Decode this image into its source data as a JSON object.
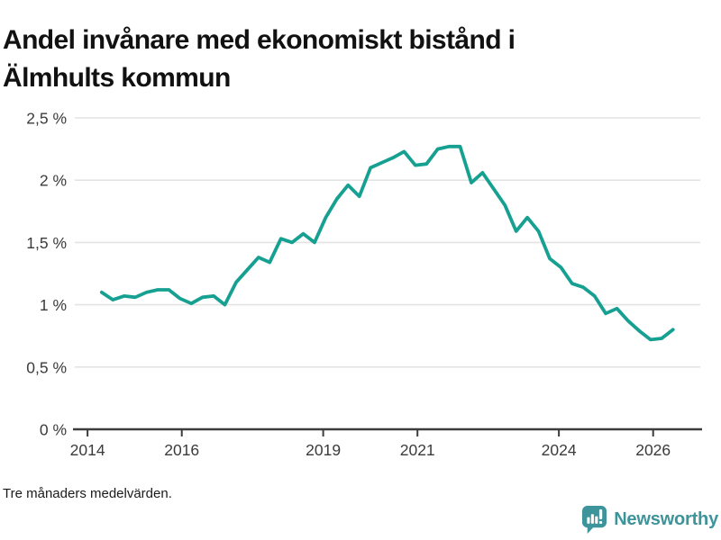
{
  "page": {
    "title": "Andel invånare med ekonomiskt bistånd i Älmhults kommun",
    "footnote": "Tre månaders medelvärden.",
    "background": "#ffffff",
    "brand": {
      "name": "Newsworthy",
      "color": "#3d949b"
    }
  },
  "chart_data": {
    "type": "line",
    "title": "Andel invånare med ekonomiskt bistånd i Älmhults kommun",
    "note": "Tre månaders medelvärden.",
    "unit": "%",
    "grid": true,
    "legend_position": "none",
    "line_color": "#16a091",
    "grid_color": "#e3e3e3",
    "axis_color": "#3c3c3c",
    "label_color": "#3b3b3b",
    "x_axis": {
      "range": [
        2013.73,
        2027.0
      ],
      "ticks": [
        {
          "year": 2014,
          "label": "2014"
        },
        {
          "year": 2016,
          "label": "2016"
        },
        {
          "year": 2019,
          "label": "2019"
        },
        {
          "year": 2021,
          "label": "2021"
        },
        {
          "year": 2024,
          "label": "2024"
        },
        {
          "year": 2026,
          "label": "2026"
        }
      ]
    },
    "y_axis": {
      "range": [
        0,
        2.5
      ],
      "ticks": [
        {
          "value": 0,
          "label": "0 %"
        },
        {
          "value": 0.5,
          "label": "0,5 %"
        },
        {
          "value": 1,
          "label": "1 %"
        },
        {
          "value": 1.5,
          "label": "1,5 %"
        },
        {
          "value": 2,
          "label": "2 %"
        },
        {
          "value": 2.5,
          "label": "2,5 %"
        }
      ]
    },
    "series": [
      {
        "name": "Andel invånare med ekonomiskt bistånd",
        "x_start": 2014.3,
        "x_end": 2026.42,
        "values": [
          1.1,
          1.04,
          1.07,
          1.06,
          1.1,
          1.12,
          1.12,
          1.05,
          1.01,
          1.06,
          1.07,
          1.0,
          1.18,
          1.28,
          1.38,
          1.34,
          1.53,
          1.5,
          1.57,
          1.5,
          1.7,
          1.85,
          1.96,
          1.87,
          2.1,
          2.14,
          2.18,
          2.23,
          2.12,
          2.13,
          2.25,
          2.27,
          2.27,
          1.98,
          2.06,
          1.93,
          1.8,
          1.59,
          1.7,
          1.59,
          1.37,
          1.3,
          1.17,
          1.14,
          1.07,
          0.93,
          0.97,
          0.87,
          0.79,
          0.72,
          0.73,
          0.8
        ]
      }
    ]
  }
}
